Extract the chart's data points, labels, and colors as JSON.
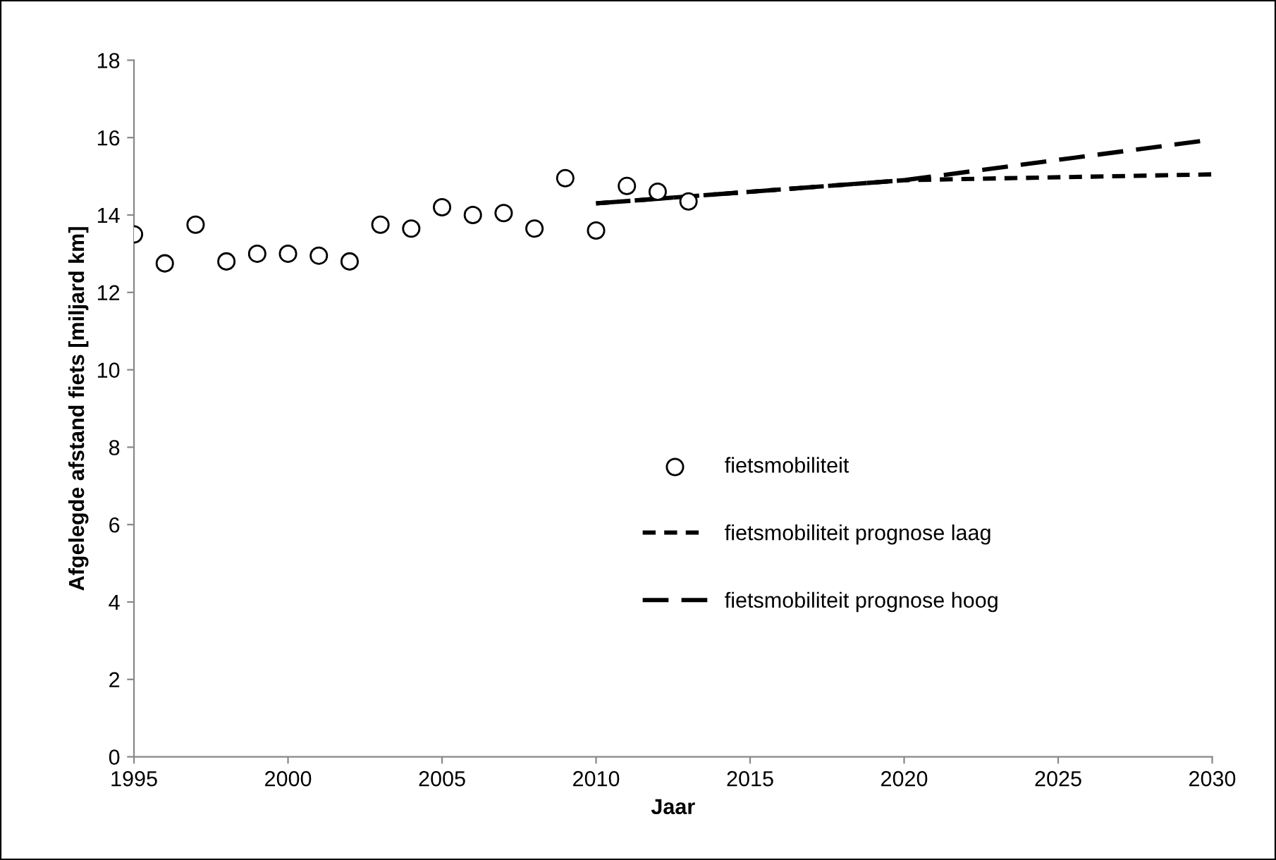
{
  "chart_data": {
    "type": "scatter",
    "xlabel": "Jaar",
    "ylabel": "Afgelegde afstand fiets [miljard km]",
    "xlim": [
      1995,
      2030
    ],
    "xticks": [
      1995,
      2000,
      2005,
      2010,
      2015,
      2020,
      2025,
      2030
    ],
    "ylim": [
      0,
      18
    ],
    "yticks": [
      0,
      2,
      4,
      6,
      8,
      10,
      12,
      14,
      16,
      18
    ],
    "grid": false,
    "legend": "bottom right",
    "series": [
      {
        "name": "fietsmobiliteit",
        "marker": "circle",
        "color": "#000000",
        "x": [
          1995,
          1996,
          1997,
          1998,
          1999,
          2000,
          2001,
          2002,
          2003,
          2004,
          2005,
          2006,
          2007,
          2008,
          2009,
          2010,
          2011,
          2012,
          2013
        ],
        "values": [
          13.5,
          12.75,
          13.75,
          12.8,
          13.0,
          13.0,
          12.95,
          12.8,
          13.75,
          13.65,
          14.2,
          14.0,
          14.05,
          13.65,
          14.95,
          13.6,
          14.75,
          14.6,
          14.35
        ]
      },
      {
        "name": "fietsmobiliteit prognose laag",
        "type": "line",
        "line_style": "dashed",
        "color": "#000000",
        "x": [
          2010,
          2020,
          2030
        ],
        "values": [
          14.3,
          14.9,
          15.05
        ]
      },
      {
        "name": "fietsmobiliteit prognose hoog",
        "type": "line",
        "line_style": "dashed",
        "color": "#000000",
        "x": [
          2010,
          2020,
          2030
        ],
        "values": [
          14.3,
          14.9,
          15.95
        ]
      }
    ]
  }
}
